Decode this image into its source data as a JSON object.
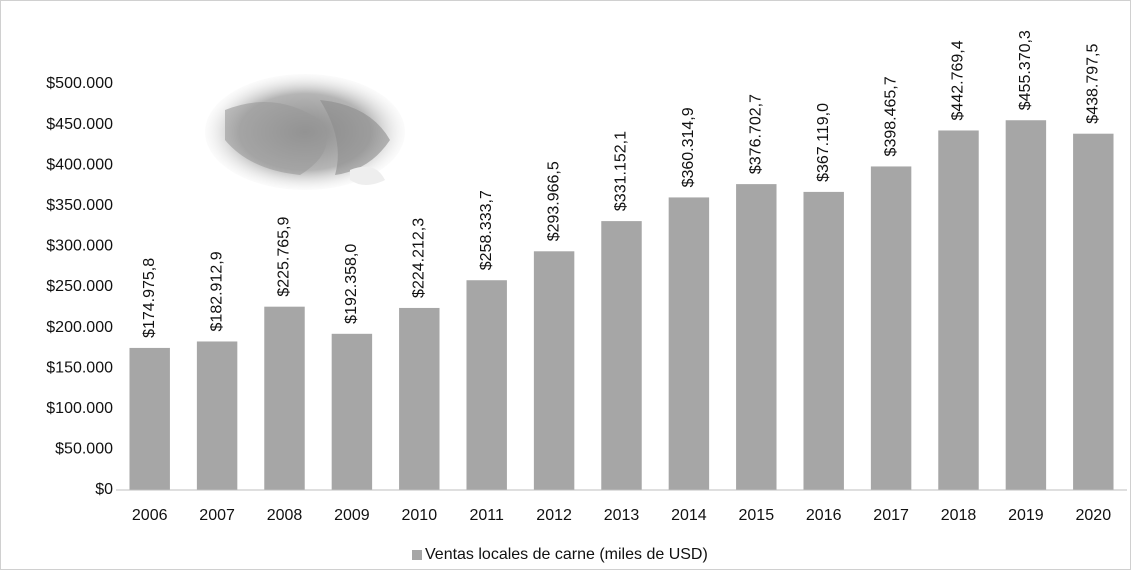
{
  "chart_data": {
    "type": "bar",
    "categories": [
      "2006",
      "2007",
      "2008",
      "2009",
      "2010",
      "2011",
      "2012",
      "2013",
      "2014",
      "2015",
      "2016",
      "2017",
      "2018",
      "2019",
      "2020"
    ],
    "series": [
      {
        "name": "Ventas locales de carne (miles de USD)",
        "color": "#a6a6a6",
        "values": [
          174975.8,
          182912.9,
          225765.9,
          192358.0,
          224212.3,
          258333.7,
          293966.5,
          331152.1,
          360314.9,
          376702.7,
          367119.0,
          398465.7,
          442769.4,
          455370.3,
          438797.5
        ],
        "value_labels": [
          "$174.975,8",
          "$182.912,9",
          "$225.765,9",
          "$192.358,0",
          "$224.212,3",
          "$258.333,7",
          "$293.966,5",
          "$331.152,1",
          "$360.314,9",
          "$376.702,7",
          "$367.119,0",
          "$398.465,7",
          "$442.769,4",
          "$455.370,3",
          "$438.797,5"
        ]
      }
    ],
    "ylim": [
      0,
      500000
    ],
    "yticks": [
      {
        "value": 0,
        "label": "$0"
      },
      {
        "value": 50000,
        "label": "$50.000"
      },
      {
        "value": 100000,
        "label": "$100.000"
      },
      {
        "value": 150000,
        "label": "$150.000"
      },
      {
        "value": 200000,
        "label": "$200.000"
      },
      {
        "value": 250000,
        "label": "$250.000"
      },
      {
        "value": 300000,
        "label": "$300.000"
      },
      {
        "value": 350000,
        "label": "$350.000"
      },
      {
        "value": 400000,
        "label": "$400.000"
      },
      {
        "value": 450000,
        "label": "$450.000"
      },
      {
        "value": 500000,
        "label": "$500.000"
      }
    ],
    "grid": false,
    "legend": "bottom"
  }
}
